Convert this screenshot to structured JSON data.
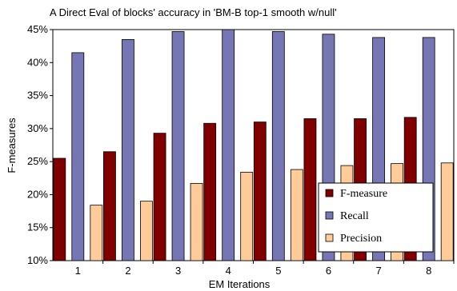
{
  "chart_data": {
    "type": "bar",
    "title": "A Direct Eval of blocks' accuracy in 'BM-B top-1 smooth w/null'",
    "xlabel": "EM  Iterations",
    "ylabel": "F-measures",
    "categories": [
      "1",
      "2",
      "3",
      "4",
      "5",
      "6",
      "7",
      "8"
    ],
    "ylim": [
      10,
      45
    ],
    "yticks": [
      "10%",
      "15%",
      "20%",
      "25%",
      "30%",
      "35%",
      "40%",
      "45%"
    ],
    "grid": false,
    "legend_position": "bottom-right",
    "series": [
      {
        "name": "F-measure",
        "color": "#800000",
        "values": [
          25.5,
          26.5,
          29.3,
          30.8,
          31.0,
          31.5,
          31.5,
          31.7
        ]
      },
      {
        "name": "Recall",
        "color": "#7676b4",
        "values": [
          41.5,
          43.5,
          44.7,
          45.0,
          44.7,
          44.3,
          43.8,
          43.8
        ]
      },
      {
        "name": "Precision",
        "color": "#ffcc99",
        "values": [
          18.4,
          19.0,
          21.7,
          23.4,
          23.8,
          24.4,
          24.7,
          24.8
        ]
      }
    ]
  }
}
